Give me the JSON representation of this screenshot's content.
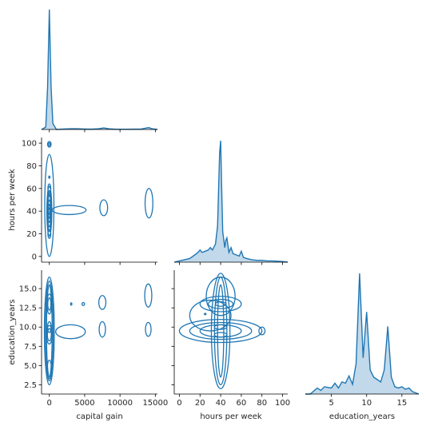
{
  "chart_data": {
    "type": "pairplot",
    "lower_kind": "kde-contour",
    "diag_kind": "kde-fill",
    "color": "#1f77b4",
    "variables": [
      "capital gain",
      "hours per week",
      "education_years"
    ],
    "axes": {
      "capital gain": {
        "label": "capital gain",
        "lim": [
          -1100,
          15300
        ],
        "ticks": [
          0,
          5000,
          10000,
          15000
        ],
        "tick_labels": [
          "0",
          "5000",
          "10000",
          "15000"
        ]
      },
      "hours per week": {
        "label": "hours per week",
        "lim": [
          -5,
          105
        ],
        "ticks": [
          0,
          20,
          40,
          60,
          80,
          100
        ],
        "tick_labels": [
          "0",
          "20",
          "40",
          "60",
          "80",
          "100"
        ]
      },
      "education_years": {
        "label": "education_years",
        "lim": [
          1.3,
          17.4
        ],
        "ticks": [
          2.5,
          5.0,
          7.5,
          10.0,
          12.5,
          15.0
        ],
        "tick_labels": [
          "2.5",
          "5.0",
          "7.5",
          "10.0",
          "12.5",
          "15.0"
        ],
        "x_ticks": [
          5,
          10,
          15
        ],
        "x_tick_labels": [
          "5",
          "10",
          "15"
        ]
      }
    },
    "diagonal": {
      "capital gain": {
        "x": [
          -1100,
          -500,
          -250,
          0,
          250,
          500,
          1000,
          1500,
          2000,
          3000,
          4000,
          5000,
          6000,
          7000,
          7700,
          8500,
          9500,
          11000,
          13000,
          13700,
          14100,
          14500,
          15300
        ],
        "density": [
          0,
          0.02,
          0.35,
          1.0,
          0.35,
          0.05,
          0.0,
          0.002,
          0.004,
          0.006,
          0.006,
          0.004,
          0.003,
          0.006,
          0.013,
          0.005,
          0.002,
          0.002,
          0.004,
          0.012,
          0.016,
          0.006,
          0.0
        ]
      },
      "hours per week": {
        "x": [
          -5,
          0,
          5,
          10,
          15,
          18,
          20,
          22,
          25,
          28,
          30,
          32,
          35,
          37,
          38,
          39,
          40,
          41,
          42,
          44,
          45,
          46,
          48,
          50,
          52,
          55,
          58,
          60,
          62,
          65,
          70,
          75,
          80,
          85,
          90,
          100,
          105
        ],
        "density": [
          0.0,
          0.01,
          0.02,
          0.03,
          0.06,
          0.08,
          0.1,
          0.08,
          0.09,
          0.1,
          0.12,
          0.1,
          0.15,
          0.3,
          0.6,
          0.9,
          1.0,
          0.6,
          0.25,
          0.12,
          0.18,
          0.2,
          0.08,
          0.12,
          0.07,
          0.06,
          0.05,
          0.09,
          0.04,
          0.03,
          0.02,
          0.015,
          0.015,
          0.01,
          0.01,
          0.005,
          0.0
        ]
      },
      "education_years": {
        "x": [
          1.3,
          2.0,
          3.0,
          3.5,
          4.0,
          5.0,
          5.5,
          6.0,
          6.5,
          7.0,
          7.5,
          8.0,
          8.5,
          9.0,
          9.5,
          10.0,
          10.5,
          11.0,
          11.5,
          12.0,
          12.5,
          13.0,
          13.5,
          14.0,
          14.5,
          15.0,
          15.5,
          16.0,
          16.5,
          17.4
        ],
        "density": [
          0.0,
          0.0,
          0.05,
          0.03,
          0.06,
          0.05,
          0.09,
          0.05,
          0.1,
          0.09,
          0.15,
          0.08,
          0.25,
          1.0,
          0.3,
          0.68,
          0.2,
          0.14,
          0.12,
          0.1,
          0.2,
          0.56,
          0.14,
          0.06,
          0.05,
          0.06,
          0.04,
          0.05,
          0.02,
          0.0
        ]
      }
    },
    "lower": [
      {
        "x_var": "capital gain",
        "y_var": "hours per week",
        "contours": [
          {
            "type": "ellipse",
            "cx": 0,
            "cy": 40,
            "rx": 350,
            "ry": 22
          },
          {
            "type": "ellipse",
            "cx": 0,
            "cy": 40,
            "rx": 300,
            "ry": 18
          },
          {
            "type": "ellipse",
            "cx": 0,
            "cy": 40,
            "rx": 250,
            "ry": 14
          },
          {
            "type": "ellipse",
            "cx": 0,
            "cy": 40,
            "rx": 200,
            "ry": 10
          },
          {
            "type": "ellipse",
            "cx": 0,
            "cy": 40,
            "rx": 150,
            "ry": 6
          },
          {
            "type": "ellipse",
            "cx": 0,
            "cy": 40,
            "rx": 100,
            "ry": 3
          },
          {
            "type": "ellipse",
            "cx": 0,
            "cy": 20,
            "rx": 200,
            "ry": 4
          },
          {
            "type": "ellipse",
            "cx": 0,
            "cy": 30,
            "rx": 230,
            "ry": 4
          },
          {
            "type": "ellipse",
            "cx": 0,
            "cy": 50,
            "rx": 230,
            "ry": 5
          },
          {
            "type": "ellipse",
            "cx": 0,
            "cy": 60,
            "rx": 200,
            "ry": 4
          },
          {
            "type": "ellipse",
            "cx": 0,
            "cy": 99,
            "rx": 250,
            "ry": 2.5
          },
          {
            "type": "ellipse",
            "cx": 0,
            "cy": 99,
            "rx": 120,
            "ry": 1.2
          },
          {
            "type": "ellipse",
            "cx": 0,
            "cy": 70,
            "rx": 60,
            "ry": 1
          },
          {
            "type": "ellipse",
            "cx": 0,
            "cy": 45,
            "rx": 650,
            "ry": 45
          },
          {
            "type": "ellipse",
            "cx": 2800,
            "cy": 41,
            "rx": 2400,
            "ry": 4
          },
          {
            "type": "ellipse",
            "cx": 7700,
            "cy": 43,
            "rx": 550,
            "ry": 7
          },
          {
            "type": "ellipse",
            "cx": 14100,
            "cy": 47,
            "rx": 550,
            "ry": 13
          }
        ]
      },
      {
        "x_var": "capital gain",
        "y_var": "education_years",
        "contours": [
          {
            "type": "ellipse",
            "cx": 0,
            "cy": 9.5,
            "rx": 700,
            "ry": 7
          },
          {
            "type": "ellipse",
            "cx": 0,
            "cy": 9.5,
            "rx": 550,
            "ry": 6.5
          },
          {
            "type": "ellipse",
            "cx": 0,
            "cy": 9.5,
            "rx": 400,
            "ry": 6
          },
          {
            "type": "ellipse",
            "cx": 0,
            "cy": 13,
            "rx": 330,
            "ry": 1.3
          },
          {
            "type": "ellipse",
            "cx": 0,
            "cy": 13,
            "rx": 220,
            "ry": 0.8
          },
          {
            "type": "ellipse",
            "cx": 0,
            "cy": 9,
            "rx": 400,
            "ry": 1.2
          },
          {
            "type": "ellipse",
            "cx": 0,
            "cy": 9,
            "rx": 280,
            "ry": 0.8
          },
          {
            "type": "ellipse",
            "cx": 0,
            "cy": 10,
            "rx": 250,
            "ry": 0.7
          },
          {
            "type": "ellipse",
            "cx": 0,
            "cy": 4.5,
            "rx": 300,
            "ry": 1.2
          },
          {
            "type": "ellipse",
            "cx": 3000,
            "cy": 9.4,
            "rx": 2100,
            "ry": 0.9
          },
          {
            "type": "ellipse",
            "cx": 3100,
            "cy": 13,
            "rx": 80,
            "ry": 0.15
          },
          {
            "type": "ellipse",
            "cx": 4800,
            "cy": 13,
            "rx": 180,
            "ry": 0.2
          },
          {
            "type": "ellipse",
            "cx": 7500,
            "cy": 13.2,
            "rx": 500,
            "ry": 0.9
          },
          {
            "type": "ellipse",
            "cx": 7500,
            "cy": 9.7,
            "rx": 450,
            "ry": 1.0
          },
          {
            "type": "ellipse",
            "cx": 14000,
            "cy": 14.1,
            "rx": 500,
            "ry": 1.5
          },
          {
            "type": "ellipse",
            "cx": 14000,
            "cy": 9.7,
            "rx": 400,
            "ry": 0.9
          }
        ]
      },
      {
        "x_var": "hours per week",
        "y_var": "education_years",
        "contours": [
          {
            "type": "ellipse",
            "cx": 40,
            "cy": 9.5,
            "rx": 9,
            "ry": 7.5
          },
          {
            "type": "ellipse",
            "cx": 40,
            "cy": 9.5,
            "rx": 6,
            "ry": 7
          },
          {
            "type": "ellipse",
            "cx": 40,
            "cy": 9.5,
            "rx": 3,
            "ry": 6
          },
          {
            "type": "ellipse",
            "cx": 40,
            "cy": 9.5,
            "rx": 40,
            "ry": 1.5
          },
          {
            "type": "ellipse",
            "cx": 40,
            "cy": 9.5,
            "rx": 30,
            "ry": 1.1
          },
          {
            "type": "ellipse",
            "cx": 40,
            "cy": 9.5,
            "rx": 20,
            "ry": 0.8
          },
          {
            "type": "ellipse",
            "cx": 40,
            "cy": 13,
            "rx": 20,
            "ry": 1.0
          },
          {
            "type": "ellipse",
            "cx": 40,
            "cy": 13,
            "rx": 12,
            "ry": 0.6
          },
          {
            "type": "ellipse",
            "cx": 40,
            "cy": 13,
            "rx": 5,
            "ry": 0.3
          },
          {
            "type": "ellipse",
            "cx": 40,
            "cy": 9,
            "rx": 6,
            "ry": 0.3
          },
          {
            "type": "ellipse",
            "cx": 40,
            "cy": 10,
            "rx": 6,
            "ry": 0.3
          },
          {
            "type": "ellipse",
            "cx": 40,
            "cy": 14,
            "rx": 14,
            "ry": 2.5
          },
          {
            "type": "ellipse",
            "cx": 30,
            "cy": 11.5,
            "rx": 20,
            "ry": 2.0
          },
          {
            "type": "ellipse",
            "cx": 80,
            "cy": 9.5,
            "rx": 3,
            "ry": 0.5
          },
          {
            "type": "ellipse",
            "cx": 25,
            "cy": 11.7,
            "rx": 0.8,
            "ry": 0.05
          }
        ]
      }
    ]
  }
}
